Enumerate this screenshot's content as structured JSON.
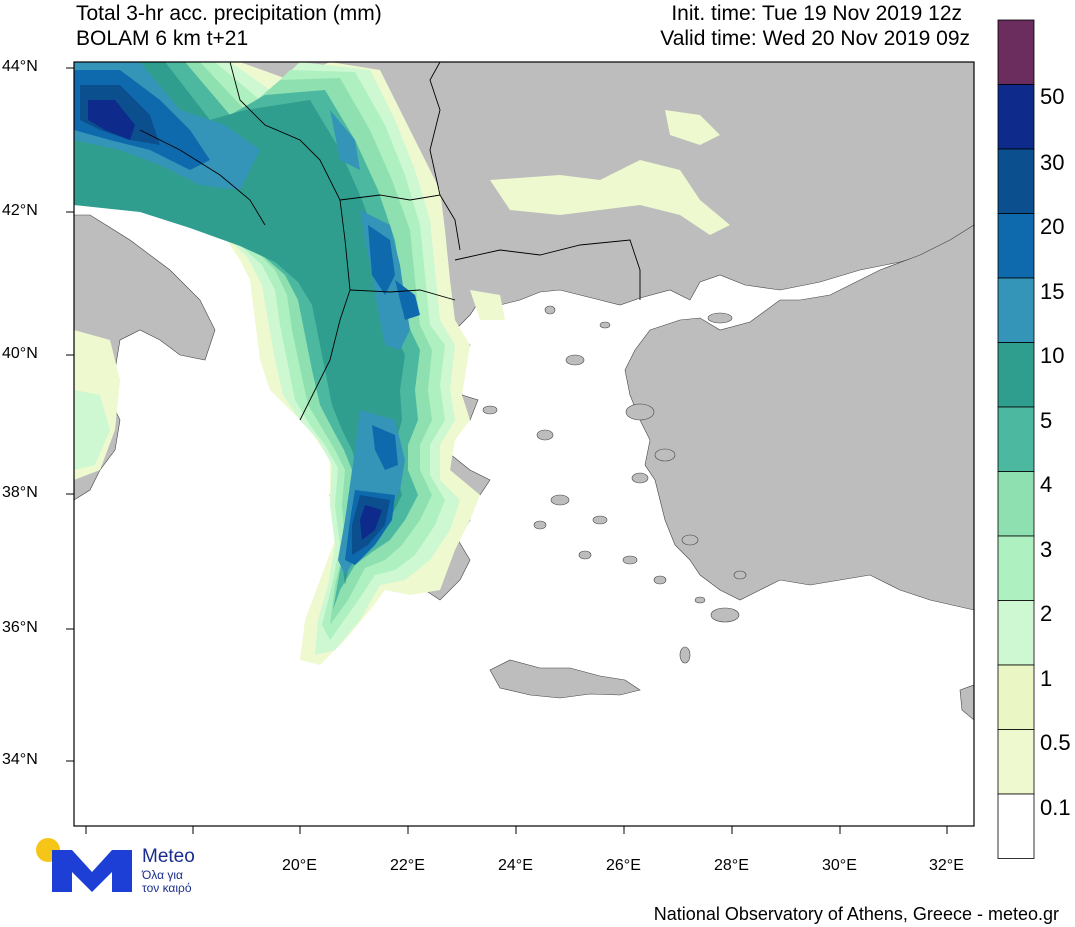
{
  "header": {
    "title_line1": "Total 3-hr acc. precipitation (mm)",
    "title_line2": "BOLAM 6 km t+21",
    "init_time": "Init. time: Tue 19 Nov 2019 12z",
    "valid_time": "Valid time: Wed 20 Nov 2019 09z"
  },
  "lat_ticks": [
    "44°N",
    "42°N",
    "40°N",
    "38°N",
    "36°N",
    "34°N"
  ],
  "lon_ticks": [
    "20°E",
    "22°E",
    "24°E",
    "26°E",
    "28°E",
    "30°E",
    "32°E"
  ],
  "colorbar": {
    "labels": [
      "50",
      "30",
      "20",
      "15",
      "10",
      "5",
      "4",
      "3",
      "2",
      "1",
      "0.5",
      "0.1"
    ],
    "colors": [
      "#6a2d5e",
      "#0e2a8a",
      "#0b4f8f",
      "#0f6aad",
      "#3495b8",
      "#2f9e8f",
      "#4db8a0",
      "#8fe0b0",
      "#aef0c0",
      "#cdf8d2",
      "#eaf7c4",
      "#eef9cf",
      "#ffffff"
    ]
  },
  "colors": {
    "land": "#bdbdbd",
    "sea": "#ffffff",
    "borders": "#000000"
  },
  "logo": {
    "name": "Meteo",
    "tagline_line1": "Όλα για",
    "tagline_line2": "τον καιρό"
  },
  "footer": {
    "credit": "National Observatory of Athens, Greece - meteo.gr"
  }
}
